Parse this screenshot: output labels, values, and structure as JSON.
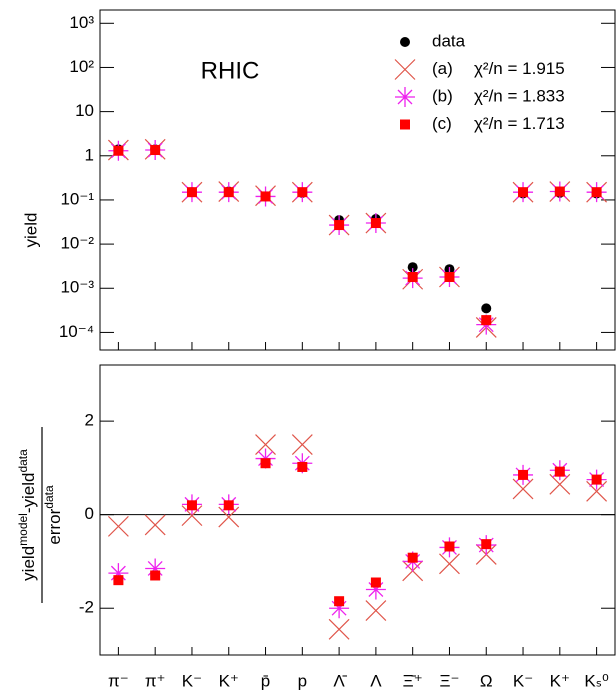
{
  "chart_data": [
    {
      "type": "scatter",
      "log_y": true,
      "annotation": "RHIC",
      "y_label": "yield",
      "ylim": [
        4e-05,
        2000
      ],
      "yticks": [
        {
          "value": 1000,
          "label": "10³"
        },
        {
          "value": 100,
          "label": "10²"
        },
        10,
        1,
        {
          "value": 0.1,
          "label": "10⁻¹"
        },
        {
          "value": 0.01,
          "label": "10⁻²"
        },
        {
          "value": 0.001,
          "label": "10⁻³"
        },
        {
          "value": 0.0001,
          "label": "10⁻⁴"
        }
      ],
      "legend": "upper right",
      "series": [
        {
          "name": "data",
          "marker": "circle",
          "color": "#000000",
          "values": [
            1.4,
            1.4,
            0.15,
            0.155,
            0.12,
            0.145,
            0.035,
            0.037,
            0.003,
            0.0027,
            0.00035,
            0.14,
            0.145,
            0.14
          ]
        },
        {
          "name": "(a)",
          "fit_label": "χ²/n = 1.915",
          "marker": "cross",
          "color": "#e0554a",
          "values": [
            1.35,
            1.4,
            0.15,
            0.155,
            0.125,
            0.15,
            0.027,
            0.03,
            0.0016,
            0.0018,
            0.00013,
            0.15,
            0.155,
            0.15
          ]
        },
        {
          "name": "(b)",
          "fit_label": "χ²/n = 1.833",
          "marker": "star",
          "color": "#ee22ee",
          "values": [
            1.3,
            1.35,
            0.15,
            0.15,
            0.12,
            0.15,
            0.027,
            0.03,
            0.0017,
            0.0018,
            0.00015,
            0.15,
            0.155,
            0.15
          ]
        },
        {
          "name": "(c)",
          "fit_label": "χ²/n = 1.713",
          "marker": "square",
          "color": "#ff0000",
          "values": [
            1.3,
            1.35,
            0.15,
            0.15,
            0.12,
            0.15,
            0.027,
            0.03,
            0.0018,
            0.0018,
            0.00019,
            0.15,
            0.155,
            0.15
          ]
        }
      ]
    },
    {
      "type": "scatter",
      "log_y": false,
      "y_label": {
        "numerator": [
          "yield",
          "model",
          "-yield",
          "data"
        ],
        "denominator": [
          "error",
          "data"
        ]
      },
      "categories": [
        "π⁻",
        "π⁺",
        "K⁻",
        "K⁺",
        "p̄",
        "p",
        "Λ̄",
        "Λ",
        "Ξ̄⁺",
        "Ξ⁻",
        "Ω",
        "K⁻",
        "K⁺",
        "Kₛ⁰"
      ],
      "ylim": [
        -3,
        3.2
      ],
      "yticks": [
        -2,
        0,
        2
      ],
      "series": [
        {
          "name": "(a)",
          "marker": "cross",
          "color": "#e0554a",
          "values": [
            -0.25,
            -0.22,
            -0.02,
            -0.05,
            1.5,
            1.5,
            -2.45,
            -2.05,
            -1.2,
            -1.05,
            -0.85,
            0.55,
            0.65,
            0.5
          ]
        },
        {
          "name": "(b)",
          "marker": "star",
          "color": "#ee22ee",
          "values": [
            -1.25,
            -1.15,
            0.22,
            0.22,
            1.2,
            1.1,
            -2.0,
            -1.6,
            -1.0,
            -0.7,
            -0.65,
            0.85,
            0.95,
            0.75
          ]
        },
        {
          "name": "(c)",
          "marker": "square",
          "color": "#ff0000",
          "values": [
            -1.4,
            -1.3,
            0.2,
            0.2,
            1.1,
            1.02,
            -1.85,
            -1.45,
            -0.92,
            -0.68,
            -0.63,
            0.85,
            0.92,
            0.75
          ]
        }
      ]
    }
  ]
}
